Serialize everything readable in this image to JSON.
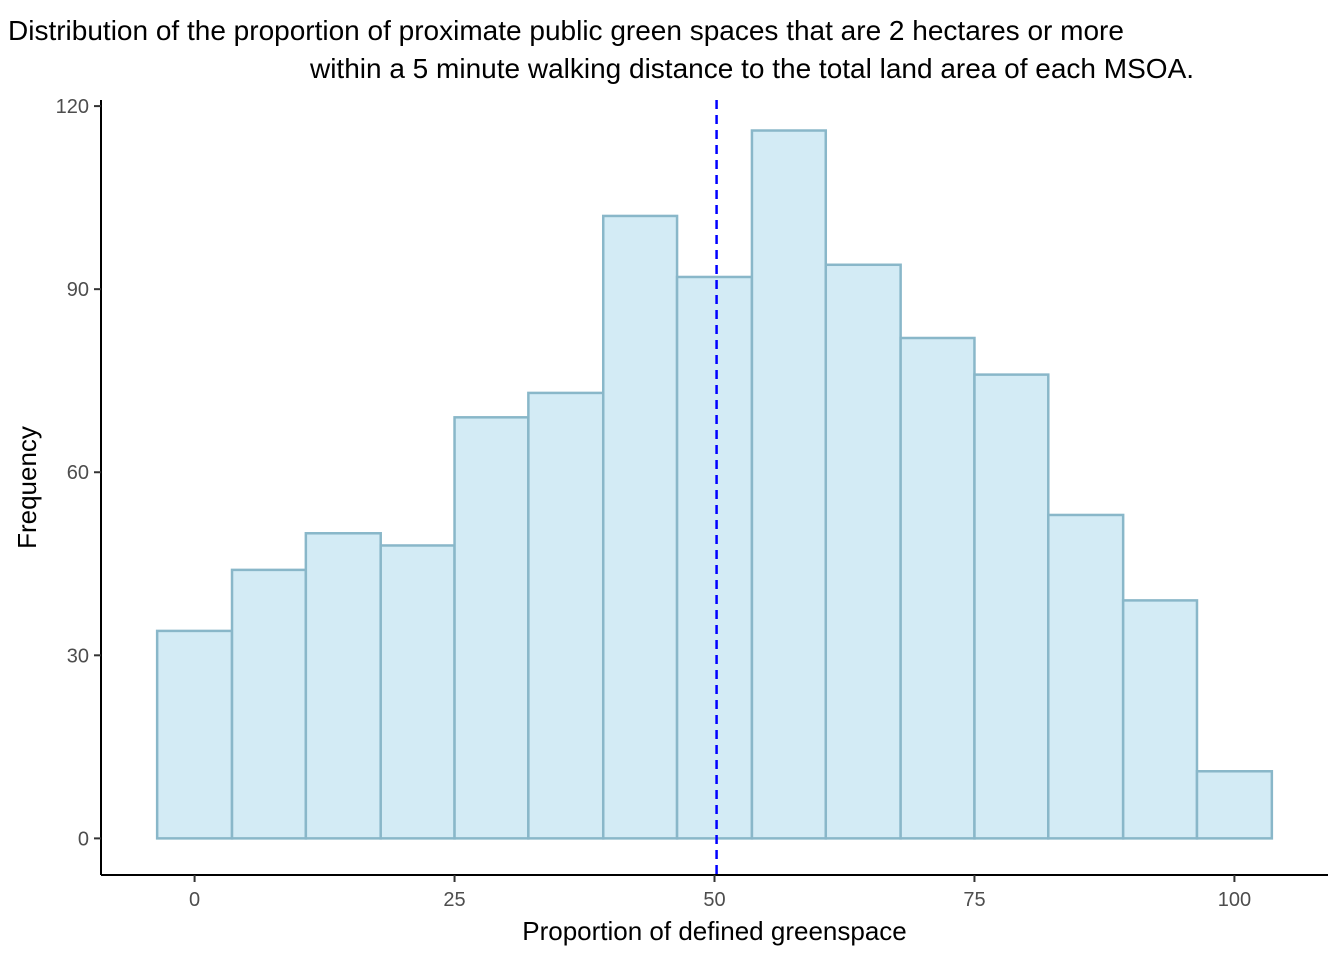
{
  "chart_data": {
    "type": "bar",
    "subtype": "histogram",
    "title_lines": [
      "Distribution of the proportion of proximate public green spaces that are 2 hectares or more",
      "within a 5 minute walking distance to the total land area of each MSOA."
    ],
    "xlabel": "Proportion of defined greenspace",
    "ylabel": "Frequency",
    "xlim": [
      -9,
      109
    ],
    "ylim": [
      -6,
      121
    ],
    "xticks": [
      0,
      25,
      50,
      75,
      100
    ],
    "yticks": [
      0,
      30,
      60,
      90,
      120
    ],
    "bins": [
      {
        "x0": -3.6,
        "x1": 3.6,
        "count": 34
      },
      {
        "x0": 3.6,
        "x1": 10.7,
        "count": 44
      },
      {
        "x0": 10.7,
        "x1": 17.9,
        "count": 50
      },
      {
        "x0": 17.9,
        "x1": 25.0,
        "count": 48
      },
      {
        "x0": 25.0,
        "x1": 32.1,
        "count": 69
      },
      {
        "x0": 32.1,
        "x1": 39.3,
        "count": 73
      },
      {
        "x0": 39.3,
        "x1": 46.4,
        "count": 102
      },
      {
        "x0": 46.4,
        "x1": 53.6,
        "count": 92
      },
      {
        "x0": 53.6,
        "x1": 60.7,
        "count": 116
      },
      {
        "x0": 60.7,
        "x1": 67.9,
        "count": 94
      },
      {
        "x0": 67.9,
        "x1": 75.0,
        "count": 82
      },
      {
        "x0": 75.0,
        "x1": 82.1,
        "count": 76
      },
      {
        "x0": 82.1,
        "x1": 89.3,
        "count": 53
      },
      {
        "x0": 89.3,
        "x1": 96.4,
        "count": 39
      },
      {
        "x0": 96.4,
        "x1": 103.6,
        "count": 11
      }
    ],
    "reference_line": {
      "x": 50.2,
      "style": "dashed",
      "color": "#0000ff"
    },
    "bar_fill": "#d3ebf5",
    "bar_stroke": "#89b7c9",
    "grid": false,
    "legend": "none"
  }
}
